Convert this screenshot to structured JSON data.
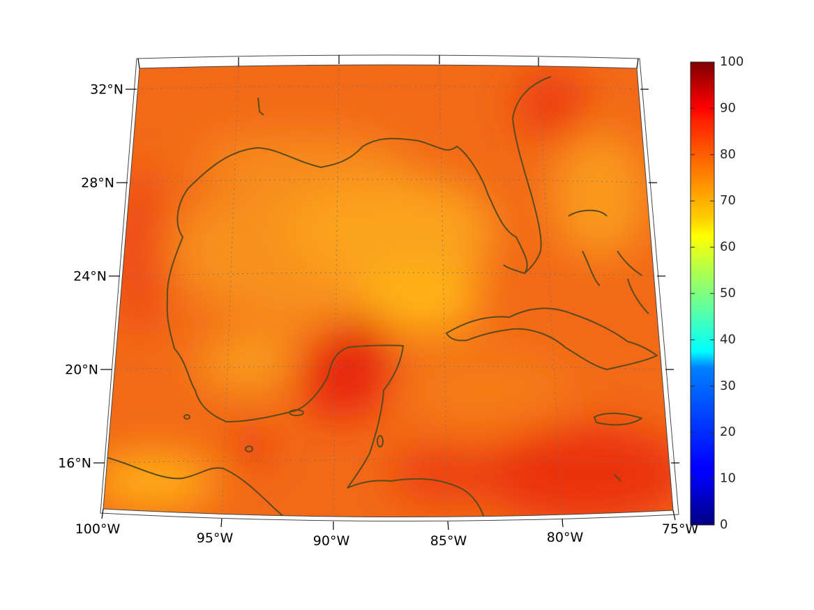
{
  "map": {
    "lat_labels": [
      "32°N",
      "28°N",
      "24°N",
      "20°N",
      "16°N"
    ],
    "lon_labels": [
      "100°W",
      "95°W",
      "90°W",
      "85°W",
      "80°W",
      "75°W"
    ],
    "grid": true,
    "coastline_color": "#5a4a1e",
    "field_palette": [
      "#e84a10",
      "#f26515",
      "#f7861c",
      "#ffb317",
      "#e82a10"
    ]
  },
  "colorbar": {
    "ticks": [
      "0",
      "10",
      "20",
      "30",
      "40",
      "50",
      "60",
      "70",
      "80",
      "90",
      "100"
    ],
    "range": [
      0,
      100
    ],
    "colormap": "jet"
  }
}
